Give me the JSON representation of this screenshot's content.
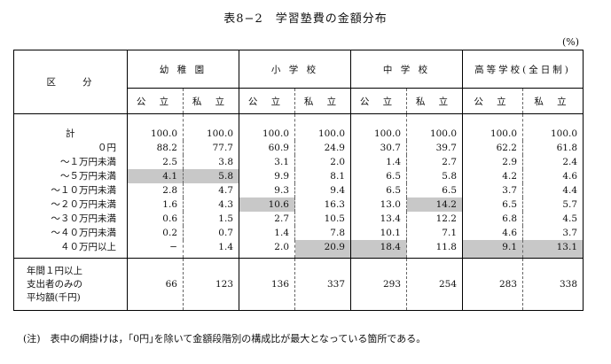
{
  "title": "表8−2　学習塾費の金額分布",
  "unit": "(%)",
  "header": {
    "kubun": "区　　分",
    "groups": [
      "幼 稚 園",
      "小 学 校",
      "中 学 校",
      "高等学校(全日制)"
    ],
    "sub": [
      "公 立",
      "私 立",
      "公 立",
      "私 立",
      "公 立",
      "私 立",
      "公 立",
      "私 立"
    ]
  },
  "rows": [
    {
      "label": "計",
      "values": [
        "100.0",
        "100.0",
        "100.0",
        "100.0",
        "100.0",
        "100.0",
        "100.0",
        "100.0"
      ]
    },
    {
      "label": "０円",
      "values": [
        "88.2",
        "77.7",
        "60.9",
        "24.9",
        "30.7",
        "39.7",
        "62.2",
        "61.8"
      ]
    },
    {
      "label": "～１万円未満",
      "values": [
        "2.5",
        "3.8",
        "3.1",
        "2.0",
        "1.4",
        "2.7",
        "2.9",
        "2.4"
      ]
    },
    {
      "label": "～５万円未満",
      "values": [
        "4.1",
        "5.8",
        "9.9",
        "8.1",
        "6.5",
        "5.8",
        "4.2",
        "4.6"
      ]
    },
    {
      "label": "～１０万円未満",
      "values": [
        "2.8",
        "4.7",
        "9.3",
        "9.4",
        "6.5",
        "6.5",
        "3.7",
        "4.4"
      ]
    },
    {
      "label": "～２０万円未満",
      "values": [
        "1.6",
        "4.3",
        "10.6",
        "16.3",
        "13.0",
        "14.2",
        "6.5",
        "5.7"
      ]
    },
    {
      "label": "～３０万円未満",
      "values": [
        "0.6",
        "1.5",
        "2.7",
        "10.5",
        "13.4",
        "12.2",
        "6.8",
        "4.5"
      ]
    },
    {
      "label": "～４０万円未満",
      "values": [
        "0.2",
        "0.7",
        "1.4",
        "7.8",
        "10.1",
        "7.1",
        "4.6",
        "3.7"
      ]
    },
    {
      "label": "４０万円以上",
      "values": [
        "−",
        "1.4",
        "2.0",
        "20.9",
        "18.4",
        "11.8",
        "9.1",
        "13.1"
      ]
    }
  ],
  "average": {
    "label_lines": [
      "年間１円以上",
      "支出者のみの",
      "平均額(千円)"
    ],
    "values": [
      "66",
      "123",
      "136",
      "337",
      "293",
      "254",
      "283",
      "338"
    ]
  },
  "note": "(注)　表中の網掛けは，｢0円｣を除いて金額段階別の構成比が最大となっている箇所である。"
}
